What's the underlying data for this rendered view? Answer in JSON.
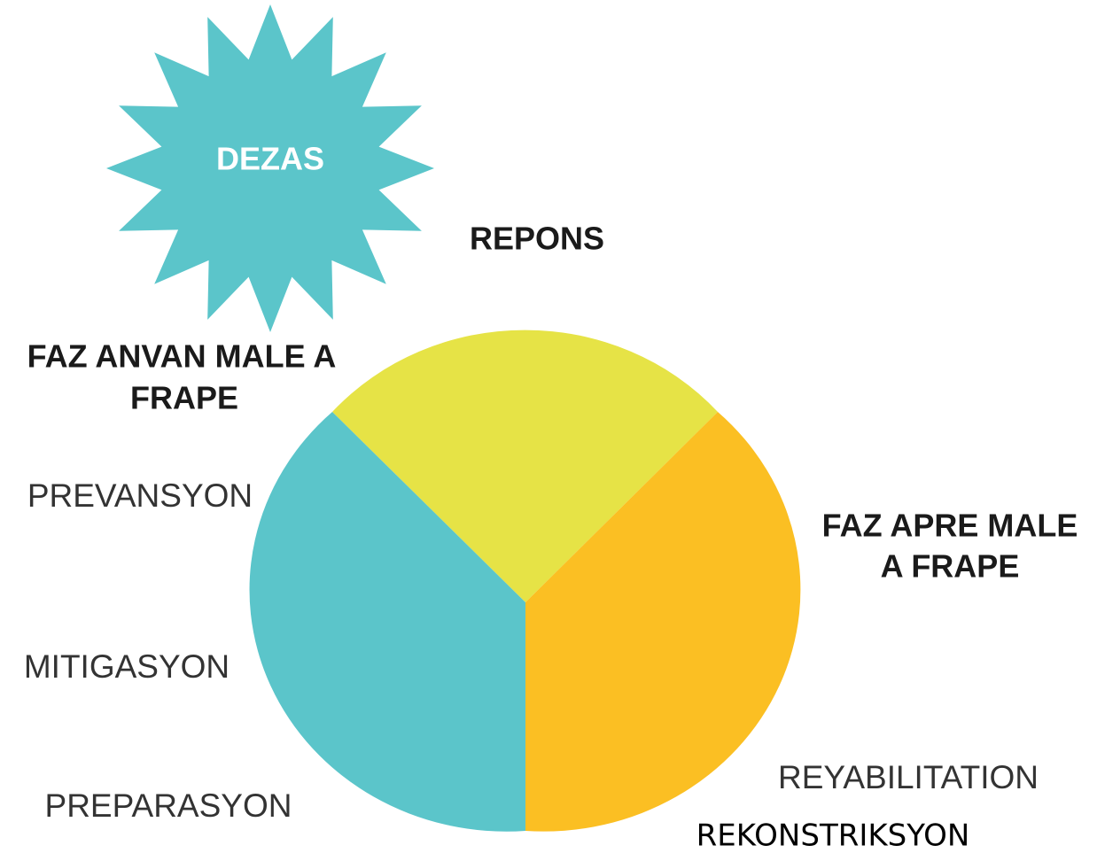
{
  "center": {
    "label": "DEZAS"
  },
  "phases": [
    {
      "label": "REPONS"
    },
    {
      "label_lines": [
        "FAZ ANVAN MALE A",
        "FRAPE"
      ],
      "steps": [
        "PREVANSYON",
        "MITIGASYON",
        "PREPARASYON"
      ]
    },
    {
      "label_lines": [
        "FAZ APRE MALE",
        "A FRAPE"
      ],
      "steps": [
        "REYABILITATION",
        "REKONSTRIKSYON"
      ]
    }
  ]
}
